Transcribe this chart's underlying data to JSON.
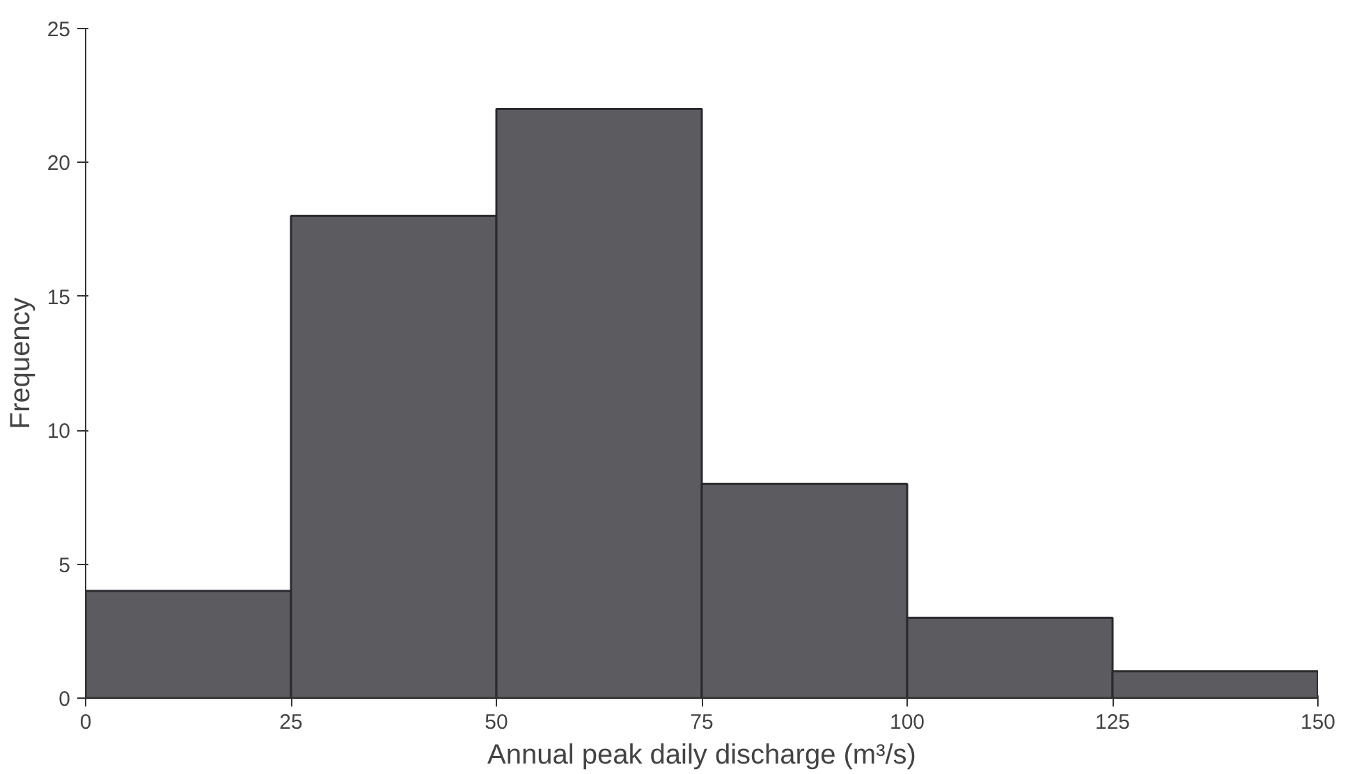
{
  "chart_data": {
    "type": "histogram",
    "xlabel": "Annual peak daily discharge (m³/s)",
    "ylabel": "Frequency",
    "bins": [
      0,
      25,
      50,
      75,
      100,
      125,
      150
    ],
    "values": [
      4,
      18,
      22,
      8,
      3,
      1
    ],
    "color": "#5b5b60",
    "xlim": [
      0,
      150
    ],
    "ylim": [
      0,
      25
    ],
    "xticks": [
      0,
      25,
      50,
      75,
      100,
      125,
      150
    ],
    "yticks": [
      0,
      5,
      10,
      15,
      20,
      25
    ],
    "grid": false
  }
}
